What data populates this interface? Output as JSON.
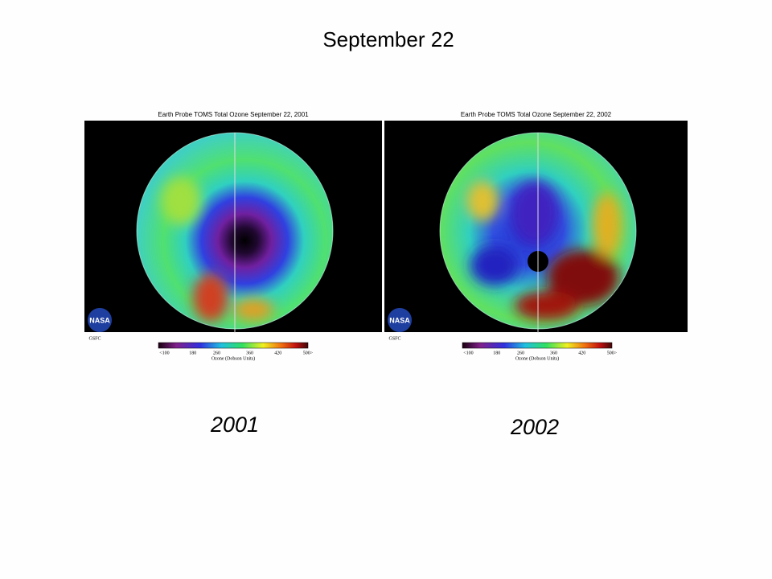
{
  "title": "September 22",
  "panels": [
    {
      "image_title": "Earth Probe TOMS Total Ozone September 22, 2001",
      "logo": "NASA",
      "org": "GSFC",
      "colorbar_ticks": [
        "<100",
        "180",
        "260",
        "360",
        "420",
        "500>"
      ],
      "colorbar_label": "Ozone (Dobson Units)",
      "caption": "2001"
    },
    {
      "image_title": "Earth Probe TOMS Total Ozone September 22, 2002",
      "logo": "NASA",
      "org": "GSFC",
      "colorbar_ticks": [
        "<100",
        "180",
        "260",
        "360",
        "420",
        "500>"
      ],
      "colorbar_label": "Ozone (Dobson Units)",
      "caption": "2002"
    }
  ]
}
